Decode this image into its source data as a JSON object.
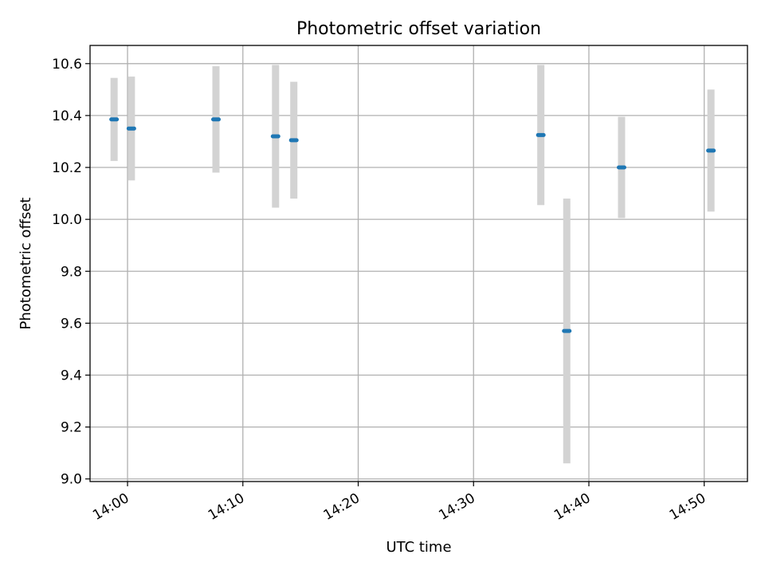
{
  "chart_data": {
    "type": "scatter",
    "title": "Photometric offset variation",
    "xlabel": "UTC time",
    "ylabel": "Photometric offset",
    "x_ticks": [
      "14:00",
      "14:10",
      "14:20",
      "14:30",
      "14:40",
      "14:50"
    ],
    "y_ticks": [
      "9.0",
      "9.2",
      "9.4",
      "9.6",
      "9.8",
      "10.0",
      "10.2",
      "10.4",
      "10.6"
    ],
    "xlim": [
      "13:56:45",
      "14:53:45"
    ],
    "ylim": [
      8.99,
      10.67
    ],
    "grid": true,
    "legend": "none",
    "points": [
      {
        "time": "13:58:50",
        "y": 10.385,
        "err": 0.16
      },
      {
        "time": "14:00:20",
        "y": 10.35,
        "err": 0.2
      },
      {
        "time": "14:07:40",
        "y": 10.385,
        "err": 0.205
      },
      {
        "time": "14:12:50",
        "y": 10.32,
        "err": 0.275
      },
      {
        "time": "14:14:25",
        "y": 10.305,
        "err": 0.225
      },
      {
        "time": "14:35:50",
        "y": 10.325,
        "err": 0.27
      },
      {
        "time": "14:38:05",
        "y": 9.57,
        "err": 0.51
      },
      {
        "time": "14:42:50",
        "y": 10.2,
        "err": 0.195
      },
      {
        "time": "14:50:35",
        "y": 10.265,
        "err": 0.235
      }
    ],
    "colors": {
      "marker": "#1f77b4",
      "errorbar": "#d3d3d3",
      "grid": "#b0b0b0"
    }
  }
}
